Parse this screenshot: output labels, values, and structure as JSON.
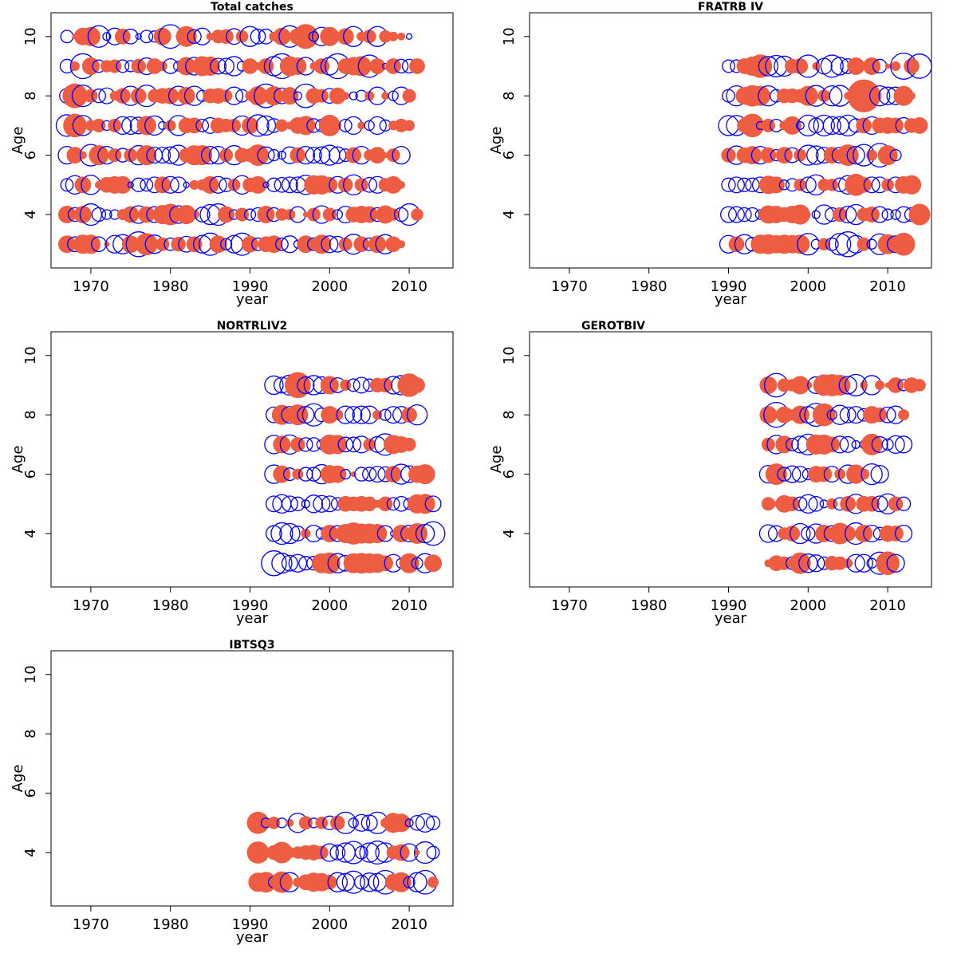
{
  "colors": {
    "positive": "#EE5C42",
    "negative": "#0000FF"
  },
  "chart_data": [
    {
      "type": "scatter",
      "subtype": "bubble",
      "title": "Total catches",
      "xlabel": "year",
      "ylabel": "Age",
      "xlim": [
        1965,
        2015.5
      ],
      "ylim": [
        2.2,
        10.8
      ],
      "xticks": [
        1970,
        1980,
        1990,
        2000,
        2010
      ],
      "yticks": [
        4,
        6,
        8,
        10
      ],
      "note": "Bubble area ~ |residual|; positive = filled red, negative = open blue",
      "year_start": 1967,
      "rows": [
        {
          "age": 10,
          "values": [
            -0.5,
            0.1,
            1.0,
            1.2,
            -1.5,
            -0.2,
            -0.9,
            0.8,
            -0.7,
            -0.1,
            -0.5,
            -0.4,
            1.0,
            -1.8,
            0.1,
            1.4,
            -0.6,
            -0.9,
            0.2,
            0.6,
            0.7,
            -0.8,
            0.5,
            -1.3,
            -0.7,
            -0.7,
            0.3,
            1.0,
            -1.5,
            0.9,
            2.0,
            -0.3,
            -1.1,
            1.2,
            0.1,
            0.9,
            -1.3,
            0.3,
            0.6,
            -1.3,
            0.5,
            0.3,
            0.2,
            -0.1
          ]
        },
        {
          "age": 9,
          "values": [
            -0.6,
            0.3,
            -2.0,
            1.0,
            -0.5,
            0.5,
            0.6,
            -0.5,
            -0.4,
            0.7,
            -0.9,
            0.8,
            0.3,
            -0.7,
            -0.3,
            1.1,
            -1.0,
            1.3,
            1.2,
            -0.8,
            -0.8,
            -1.2,
            -0.3,
            0.8,
            0.2,
            0.8,
            -1.2,
            -2.0,
            1.3,
            1.0,
            -1.0,
            0.2,
            0.8,
            -1.0,
            -2.0,
            0.8,
            1.1,
            1.3,
            -1.6,
            0.8,
            -0.1,
            0.8,
            -0.6,
            -0.6,
            0.8
          ]
        },
        {
          "age": 8,
          "values": [
            -0.7,
            2.0,
            -1.5,
            0.6,
            -0.6,
            -0.8,
            0.3,
            0.8,
            -1.2,
            0.8,
            -1.5,
            0.6,
            0.8,
            0.9,
            -1.2,
            1.0,
            -1.2,
            -0.4,
            0.7,
            0.8,
            0.5,
            -1.0,
            -0.5,
            0.3,
            1.2,
            -1.8,
            1.2,
            -0.8,
            1.0,
            -0.2,
            -1.8,
            0.8,
            0.6,
            -0.7,
            0.9,
            0.2,
            -0.2,
            -0.4,
            0.3,
            -1.0,
            0.2,
            -0.3,
            -1.0,
            0.6
          ]
        },
        {
          "age": 7,
          "values": [
            -1.5,
            1.8,
            -1.3,
            0.4,
            0.6,
            -0.3,
            0.6,
            -1.0,
            -1.0,
            -0.9,
            1.2,
            -1.2,
            -0.2,
            0.4,
            -1.3,
            0.8,
            0.8,
            -0.5,
            -0.8,
            0.8,
            0.6,
            0.6,
            -1.2,
            0.9,
            -1.5,
            -1.2,
            -0.6,
            0.5,
            0.2,
            0.9,
            1.2,
            -0.6,
            -0.5,
            1.5,
            0.2,
            -0.5,
            -1.0,
            0.2,
            -0.3,
            -1.0,
            -0.4,
            0.3,
            0.6,
            0.4
          ]
        },
        {
          "age": 6,
          "values": [
            -1.0,
            0.9,
            0.2,
            -1.5,
            1.3,
            -1.0,
            0.6,
            -0.6,
            0.6,
            -1.2,
            1.3,
            -0.8,
            -0.8,
            -0.9,
            -1.3,
            0.7,
            1.3,
            1.3,
            -1.0,
            -1.0,
            0.6,
            -1.2,
            0.7,
            0.6,
            1.5,
            -0.9,
            -0.4,
            -0.2,
            -0.9,
            0.8,
            -1.0,
            -0.8,
            -0.9,
            -1.3,
            -0.9,
            -0.5,
            0.8,
            -1.0,
            0.4,
            0.9,
            0.1,
            0.6,
            -1.0
          ]
        },
        {
          "age": 5,
          "values": [
            -0.5,
            -1.1,
            0.9,
            -1.2,
            0.2,
            0.8,
            1.0,
            1.0,
            -0.1,
            -0.6,
            -0.5,
            -0.8,
            0.9,
            -0.9,
            -0.8,
            -0.1,
            0.3,
            0.4,
            1.0,
            -0.9,
            -0.6,
            0.5,
            -1.1,
            0.7,
            1.0,
            -0.1,
            -0.6,
            -0.7,
            -0.8,
            -0.8,
            -1.2,
            1.2,
            1.2,
            0.8,
            -0.9,
            0.7,
            -1.3,
            0.6,
            -0.7,
            -0.9,
            0.6,
            1.0,
            0.2
          ]
        },
        {
          "age": 4,
          "values": [
            1.0,
            -0.6,
            1.0,
            -1.5,
            -0.6,
            -0.3,
            -0.3,
            0.4,
            0.9,
            -1.0,
            0.9,
            -0.8,
            1.2,
            1.5,
            -1.0,
            1.2,
            0.3,
            -0.7,
            -1.3,
            -1.5,
            0.9,
            -0.3,
            0.6,
            -0.4,
            -0.6,
            1.0,
            -0.6,
            0.5,
            0.4,
            -0.8,
            0.1,
            0.6,
            -1.0,
            0.6,
            -0.3,
            -0.9,
            0.8,
            1.0,
            0.9,
            -0.6,
            1.1,
            0.5,
            -0.6,
            -1.5,
            0.5
          ]
        },
        {
          "age": 3,
          "values": [
            1.0,
            -0.7,
            1.2,
            1.2,
            -0.7,
            0.1,
            -1.0,
            -1.2,
            1.0,
            -2.0,
            1.6,
            -1.1,
            0.6,
            -0.5,
            0.7,
            -0.8,
            0.8,
            -1.0,
            -1.6,
            1.0,
            -0.4,
            -1.0,
            -1.6,
            0.9,
            -0.5,
            0.8,
            1.0,
            -0.5,
            -0.9,
            -0.2,
            1.0,
            -0.5,
            1.2,
            -0.9,
            -0.8,
            0.6,
            -1.3,
            0.8,
            -0.5,
            1.0,
            -1.2,
            0.8,
            0.2
          ]
        }
      ]
    },
    {
      "type": "scatter",
      "subtype": "bubble",
      "title": "FRATRB IV",
      "xlabel": "year",
      "ylabel": "Age",
      "xlim": [
        1965,
        2015.5
      ],
      "ylim": [
        2.2,
        10.8
      ],
      "xticks": [
        1970,
        1980,
        1990,
        2000,
        2010
      ],
      "yticks": [
        4,
        6,
        8,
        10
      ],
      "year_start": 1990,
      "rows": [
        {
          "age": 9,
          "values": [
            -0.5,
            -0.5,
            0.8,
            1.2,
            1.8,
            -1.2,
            -1.5,
            -1.3,
            0.7,
            0.8,
            -1.6,
            0.2,
            -0.8,
            -1.6,
            -1.0,
            -0.7,
            1.0,
            0.1,
            1.0,
            -0.6,
            0.1,
            0.3,
            -2.2,
            0.8,
            -1.9
          ]
        },
        {
          "age": 8,
          "values": [
            -0.5,
            -1.3,
            1.0,
            1.5,
            1.3,
            -1.3,
            -0.5,
            0.7,
            0.7,
            0.6,
            1.3,
            -1.4,
            0.5,
            -1.3,
            -1.4,
            0.2,
            0.1,
            3.5,
            1.2,
            -1.3,
            -1.0,
            -1.0,
            1.3,
            0.2
          ]
        },
        {
          "age": 7,
          "values": [
            -1.3,
            -1.3,
            0.7,
            1.8,
            -0.2,
            0.6,
            -0.5,
            0.3,
            1.1,
            -0.2,
            -1.4,
            -0.7,
            -1.4,
            -1.0,
            -1.0,
            -1.4,
            -0.6,
            0.8,
            -1.0,
            0.8,
            0.9,
            0.8,
            -0.8,
            0.7,
            0.9
          ]
        },
        {
          "age": 6,
          "values": [
            0.7,
            -1.1,
            0.8,
            1.1,
            -1.0,
            0.8,
            -0.4,
            0.9,
            -0.7,
            0.5,
            -1.3,
            -1.1,
            -0.8,
            0.9,
            -0.8,
            1.5,
            -1.0,
            -1.5,
            0.4,
            -1.8,
            1.3,
            -0.4
          ]
        },
        {
          "age": 5,
          "values": [
            -0.6,
            -0.8,
            -0.6,
            -0.6,
            -0.8,
            1.1,
            0.9,
            -0.3,
            -0.5,
            0.5,
            -0.8,
            -1.3,
            0.5,
            0.5,
            -0.6,
            -1.1,
            1.6,
            0.8,
            -0.8,
            -0.8,
            0.5,
            -0.8,
            1.0,
            1.2
          ]
        },
        {
          "age": 4,
          "values": [
            -0.8,
            -0.8,
            -0.6,
            -0.6,
            -0.3,
            1.1,
            1.0,
            0.7,
            1.0,
            1.3,
            0.1,
            -0.2,
            -1.2,
            -0.6,
            0.7,
            -0.9,
            -1.3,
            0.6,
            0.8,
            -0.8,
            -0.4,
            -0.3,
            -0.8,
            -0.6,
            1.5
          ]
        },
        {
          "age": 3,
          "values": [
            -1.0,
            0.8,
            -1.2,
            -0.6,
            1.2,
            1.3,
            1.1,
            1.2,
            1.1,
            1.2,
            -1.5,
            -0.3,
            0.5,
            -0.5,
            -1.5,
            -2.0,
            -1.0,
            0.6,
            -0.3,
            -1.4,
            1.3,
            -0.9,
            1.7
          ]
        }
      ]
    },
    {
      "type": "scatter",
      "subtype": "bubble",
      "title": "NORTRLIV2",
      "xlabel": "year",
      "ylabel": "Age",
      "xlim": [
        1965,
        2015.5
      ],
      "ylim": [
        2.2,
        10.8
      ],
      "xticks": [
        1970,
        1980,
        1990,
        2000,
        2010
      ],
      "yticks": [
        4,
        6,
        8,
        10
      ],
      "year_start": 1993,
      "rows": [
        {
          "age": 9,
          "values": [
            -1.1,
            -0.8,
            -1.3,
            2.2,
            -0.9,
            -1.2,
            -0.9,
            1.1,
            -0.7,
            0.4,
            -0.5,
            -0.8,
            -0.5,
            0.7,
            0.7,
            -1.0,
            -1.2,
            1.8,
            0.8
          ]
        },
        {
          "age": 8,
          "values": [
            -0.8,
            1.3,
            -0.9,
            1.4,
            -0.9,
            -1.6,
            -0.6,
            1.0,
            0.4,
            -1.0,
            -0.9,
            -1.0,
            -1.0,
            0.3,
            -0.4,
            -0.9,
            -0.9,
            0.8,
            -1.3
          ]
        },
        {
          "age": 7,
          "values": [
            -1.1,
            1.0,
            -1.2,
            0.7,
            -0.6,
            -0.6,
            -0.3,
            1.3,
            1.2,
            -0.7,
            -0.7,
            -0.9,
            0.5,
            -0.8,
            -1.5,
            1.2,
            0.9,
            0.6
          ]
        },
        {
          "age": 6,
          "values": [
            -1.1,
            1.0,
            -0.5,
            0.4,
            -0.6,
            -0.6,
            -1.2,
            1.1,
            1.0,
            -0.3,
            0.1,
            -0.6,
            -0.6,
            -0.8,
            -0.7,
            0.9,
            -1.3,
            -0.9,
            1.0,
            1.3
          ]
        },
        {
          "age": 5,
          "values": [
            -0.8,
            -1.1,
            -0.8,
            -0.6,
            -0.2,
            -1.0,
            -0.9,
            -0.8,
            -0.5,
            0.8,
            0.7,
            0.8,
            0.7,
            0.2,
            0.7,
            -0.5,
            -0.7,
            -0.4,
            1.2,
            1.3,
            -0.8
          ]
        },
        {
          "age": 4,
          "values": [
            -0.8,
            -1.5,
            -1.3,
            -0.7,
            0.3,
            -0.9,
            -0.4,
            1.0,
            -0.8,
            1.2,
            1.6,
            1.3,
            1.3,
            1.2,
            -0.8,
            -0.1,
            1.0,
            -0.9,
            1.4,
            -1.1,
            -1.8
          ]
        },
        {
          "age": 3,
          "values": [
            -2.0,
            -1.3,
            -0.8,
            -1.0,
            -0.6,
            -0.6,
            1.3,
            1.5,
            -1.2,
            -0.8,
            1.3,
            1.4,
            1.3,
            1.2,
            0.8,
            -1.0,
            -0.3,
            1.3,
            -0.4,
            -1.2,
            1.0
          ]
        }
      ]
    },
    {
      "type": "scatter",
      "subtype": "bubble",
      "title": "GEROTBIV",
      "xlabel": "year",
      "ylabel": "Age",
      "xlim": [
        1965,
        2015.5
      ],
      "ylim": [
        2.2,
        10.8
      ],
      "xticks": [
        1970,
        1980,
        1990,
        2000,
        2010
      ],
      "yticks": [
        4,
        6,
        8,
        10
      ],
      "year_start": 1995,
      "rows": [
        {
          "age": 9,
          "values": [
            1.0,
            -1.8,
            0.6,
            0.5,
            1.1,
            0.2,
            -0.9,
            1.5,
            1.6,
            1.4,
            -1.0,
            -1.5,
            0.2,
            -1.2,
            0.3,
            0.1,
            0.8,
            -0.4,
            0.8,
            0.5
          ]
        },
        {
          "age": 8,
          "values": [
            1.0,
            -2.0,
            0.9,
            0.4,
            1.1,
            -0.9,
            -1.7,
            1.7,
            -0.3,
            -1.2,
            -0.8,
            -0.9,
            -0.5,
            1.0,
            0.7,
            -0.8,
            -1.0,
            0.4
          ]
        },
        {
          "age": 7,
          "values": [
            0.6,
            -1.1,
            1.0,
            -0.5,
            -0.9,
            -1.4,
            1.3,
            1.3,
            0.8,
            -0.9,
            -0.8,
            -0.2,
            -0.2,
            1.5,
            -0.8,
            -0.4,
            -1.0,
            -0.9
          ]
        },
        {
          "age": 6,
          "values": [
            -1.0,
            1.5,
            -0.6,
            -0.9,
            -0.8,
            -0.4,
            0.9,
            0.8,
            -0.8,
            0.4,
            -1.1,
            1.2,
            0.4,
            -1.4,
            -1.0
          ]
        },
        {
          "age": 5,
          "values": [
            0.6,
            0.1,
            1.0,
            0.7,
            -0.6,
            -1.1,
            -0.7,
            -0.2,
            0.4,
            -0.5,
            0.8,
            -1.2,
            0.8,
            0.8,
            -0.8,
            -1.3,
            0.7,
            -0.6
          ]
        },
        {
          "age": 4,
          "values": [
            -1.0,
            -0.8,
            0.5,
            0.8,
            -1.3,
            -0.6,
            -1.2,
            1.0,
            -0.8,
            1.5,
            0.8,
            -1.5,
            1.0,
            -0.9,
            -0.5,
            0.9,
            0.8,
            -0.9
          ]
        },
        {
          "age": 3,
          "values": [
            0.2,
            0.8,
            0.6,
            -0.5,
            1.5,
            -1.1,
            -0.9,
            -0.5,
            0.7,
            0.6,
            0.3,
            -1.0,
            -1.0,
            -0.3,
            -1.6,
            1.8,
            -1.0
          ]
        }
      ]
    },
    {
      "type": "scatter",
      "subtype": "bubble",
      "title": "IBTSQ3",
      "xlabel": "year",
      "ylabel": "Age",
      "xlim": [
        1965,
        2015.5
      ],
      "ylim": [
        2.2,
        10.8
      ],
      "xticks": [
        1970,
        1980,
        1990,
        2000,
        2010
      ],
      "yticks": [
        4,
        6,
        8,
        10
      ],
      "year_start": 1991,
      "rows": [
        {
          "age": 5,
          "values": [
            1.6,
            -0.3,
            0.5,
            -0.3,
            0.2,
            -1.2,
            0.6,
            -0.3,
            0.5,
            -0.6,
            0.7,
            -1.5,
            -0.3,
            -0.9,
            -0.8,
            -1.5,
            0.3,
            1.3,
            1.1,
            -0.2,
            -0.7,
            -1.1,
            -0.6
          ]
        },
        {
          "age": 4,
          "values": [
            1.6,
            0.3,
            0.7,
            1.5,
            0.4,
            0.5,
            0.7,
            0.8,
            0.6,
            -1.0,
            -0.7,
            -1.2,
            -1.6,
            -0.5,
            -1.2,
            -1.7,
            -1.2,
            0.6,
            0.9,
            -1.0,
            0.1,
            -1.5,
            -0.5
          ]
        },
        {
          "age": 3,
          "values": [
            1.2,
            1.4,
            -0.4,
            1.5,
            -1.2,
            0.3,
            0.8,
            1.2,
            1.1,
            0.7,
            -1.2,
            -1.0,
            -1.6,
            -0.6,
            -1.1,
            -1.0,
            -1.8,
            0.9,
            1.3,
            -0.4,
            -1.2,
            -1.8,
            0.4
          ]
        }
      ]
    }
  ]
}
